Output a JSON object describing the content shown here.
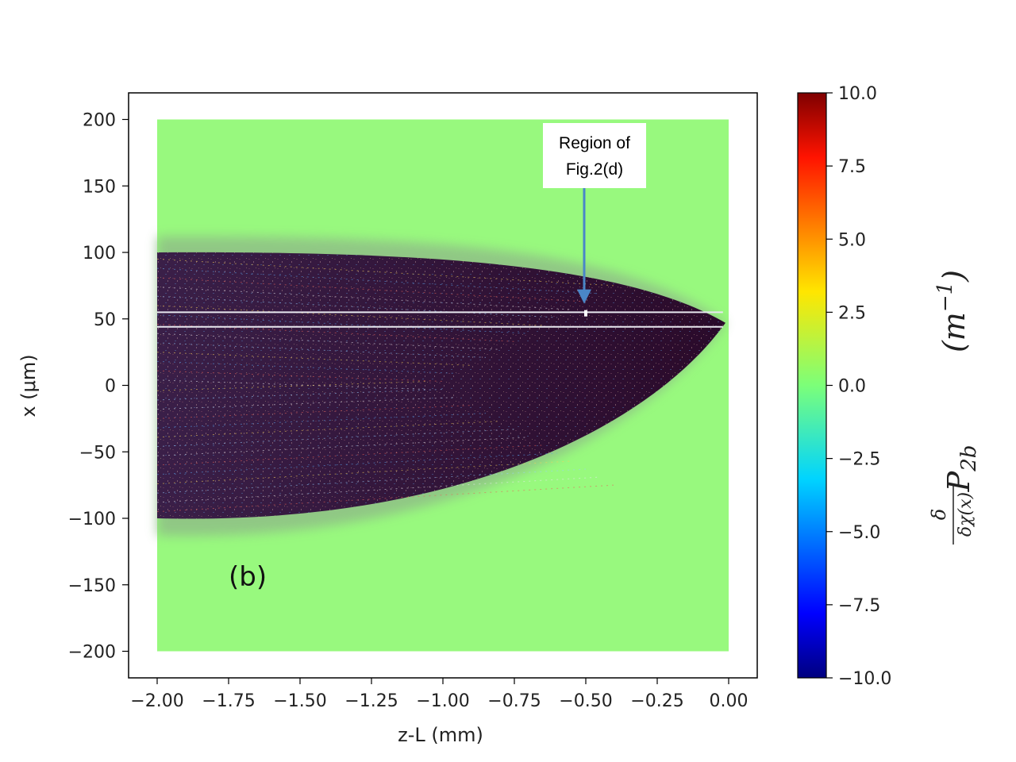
{
  "chart_data": {
    "type": "heatmap",
    "panel_label": "(b)",
    "xlabel": "z-L (mm)",
    "ylabel": "x (μm)",
    "xlim": [
      -2.1,
      0.1
    ],
    "ylim": [
      -220,
      220
    ],
    "x_ticks": [
      -2.0,
      -1.75,
      -1.5,
      -1.25,
      -1.0,
      -0.75,
      -0.5,
      -0.25,
      0.0
    ],
    "x_tick_labels": [
      "−2.00",
      "−1.75",
      "−1.50",
      "−1.25",
      "−1.00",
      "−0.75",
      "−0.50",
      "−0.25",
      "0.00"
    ],
    "y_ticks": [
      200,
      150,
      100,
      50,
      0,
      -50,
      -100,
      -150,
      -200
    ],
    "y_tick_labels": [
      "200",
      "150",
      "100",
      "50",
      "0",
      "−50",
      "−100",
      "−150",
      "−200"
    ],
    "data_extent": {
      "z": [
        -2.0,
        0.0
      ],
      "x": [
        -200,
        200
      ]
    },
    "lobe": {
      "tip_z": 0.0,
      "tip_x": 47,
      "outer_upper_x": 112,
      "outer_lower_x": -113,
      "core_upper_x": 100,
      "core_lower_x": -100
    },
    "white_lines_x": [
      55,
      44
    ],
    "colorbar": {
      "min": -10.0,
      "max": 10.0,
      "ticks": [
        10.0,
        7.5,
        5.0,
        2.5,
        0.0,
        -2.5,
        -5.0,
        -7.5,
        -10.0
      ],
      "tick_labels": [
        "10.0",
        "7.5",
        "5.0",
        "2.5",
        "0.0",
        "−2.5",
        "−5.0",
        "−7.5",
        "−10.0"
      ],
      "label_frac_num": "δ",
      "label_frac_den": "δχ(x)",
      "label_sym": "P",
      "label_sub": "2b",
      "label_unit": "(m",
      "label_unit_sup": "−1",
      "label_unit_close": ")",
      "colormap": "jet"
    },
    "annotation": {
      "line1": "Region of",
      "line2": "Fig.2(d)",
      "target_z": -0.5,
      "target_x": 59
    }
  }
}
